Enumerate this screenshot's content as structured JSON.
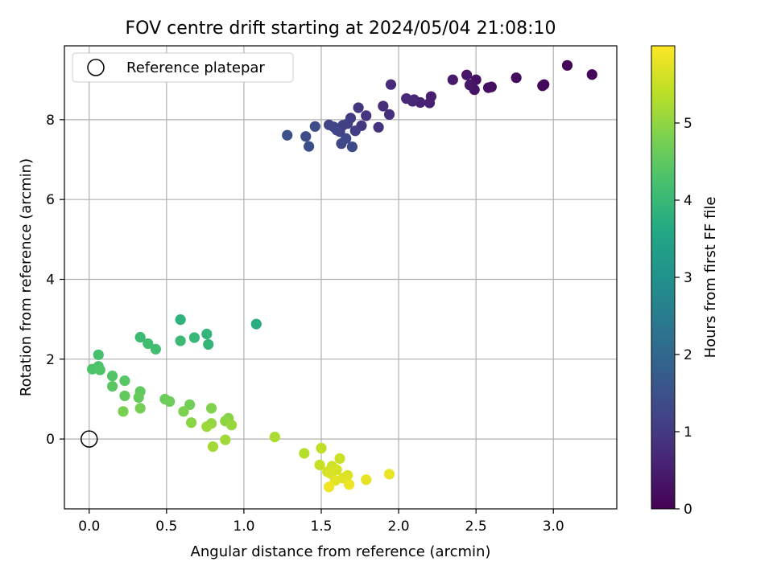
{
  "chart_data": {
    "type": "scatter",
    "title": "FOV centre drift starting at 2024/05/04 21:08:10",
    "xlabel": "Angular distance from reference (arcmin)",
    "ylabel": "Rotation from reference (arcmin)",
    "xlim": [
      -0.16,
      3.41
    ],
    "ylim": [
      -1.75,
      9.85
    ],
    "xticks": [
      0.0,
      0.5,
      1.0,
      1.5,
      2.0,
      2.5,
      3.0
    ],
    "yticks": [
      0,
      2,
      4,
      6,
      8
    ],
    "x_tick_labels": [
      "0.0",
      "0.5",
      "1.0",
      "1.5",
      "2.0",
      "2.5",
      "3.0"
    ],
    "y_tick_labels": [
      "0",
      "2",
      "4",
      "6",
      "8"
    ],
    "grid": true,
    "legend": {
      "position": "upper-left",
      "entries": [
        "Reference platepar"
      ]
    },
    "colorbar": {
      "label": "Hours from first FF file",
      "colormap": "viridis",
      "range": [
        0,
        6
      ],
      "ticks": [
        0,
        1,
        2,
        3,
        4,
        5
      ],
      "tick_labels": [
        "0",
        "1",
        "2",
        "3",
        "4",
        "5"
      ]
    },
    "reference": {
      "x": 0.0,
      "y": 0.0
    },
    "points": [
      {
        "x": 3.09,
        "y": 9.36,
        "h": 0.05
      },
      {
        "x": 3.25,
        "y": 9.13,
        "h": 0.08
      },
      {
        "x": 2.94,
        "y": 8.88,
        "h": 0.12
      },
      {
        "x": 2.93,
        "y": 8.85,
        "h": 0.14
      },
      {
        "x": 2.76,
        "y": 9.05,
        "h": 0.18
      },
      {
        "x": 2.6,
        "y": 8.82,
        "h": 0.22
      },
      {
        "x": 2.58,
        "y": 8.8,
        "h": 0.25
      },
      {
        "x": 2.5,
        "y": 9.0,
        "h": 0.28
      },
      {
        "x": 2.47,
        "y": 8.88,
        "h": 0.3
      },
      {
        "x": 2.49,
        "y": 8.75,
        "h": 0.33
      },
      {
        "x": 2.44,
        "y": 9.12,
        "h": 0.36
      },
      {
        "x": 2.46,
        "y": 8.87,
        "h": 0.4
      },
      {
        "x": 2.35,
        "y": 9.0,
        "h": 0.44
      },
      {
        "x": 2.21,
        "y": 8.58,
        "h": 0.5
      },
      {
        "x": 2.2,
        "y": 8.42,
        "h": 0.54
      },
      {
        "x": 2.14,
        "y": 8.43,
        "h": 0.58
      },
      {
        "x": 2.1,
        "y": 8.5,
        "h": 0.62
      },
      {
        "x": 2.05,
        "y": 8.53,
        "h": 0.66
      },
      {
        "x": 2.09,
        "y": 8.46,
        "h": 0.69
      },
      {
        "x": 1.95,
        "y": 8.88,
        "h": 0.72
      },
      {
        "x": 1.9,
        "y": 8.34,
        "h": 0.78
      },
      {
        "x": 1.94,
        "y": 8.13,
        "h": 0.82
      },
      {
        "x": 1.87,
        "y": 7.81,
        "h": 0.86
      },
      {
        "x": 1.79,
        "y": 8.1,
        "h": 0.9
      },
      {
        "x": 1.74,
        "y": 8.3,
        "h": 0.94
      },
      {
        "x": 1.76,
        "y": 7.85,
        "h": 0.98
      },
      {
        "x": 1.69,
        "y": 8.04,
        "h": 1.02
      },
      {
        "x": 1.72,
        "y": 7.72,
        "h": 1.06
      },
      {
        "x": 1.67,
        "y": 7.9,
        "h": 1.1
      },
      {
        "x": 1.64,
        "y": 7.86,
        "h": 1.13
      },
      {
        "x": 1.62,
        "y": 7.7,
        "h": 1.16
      },
      {
        "x": 1.58,
        "y": 7.82,
        "h": 1.19
      },
      {
        "x": 1.55,
        "y": 7.87,
        "h": 1.22
      },
      {
        "x": 1.6,
        "y": 7.74,
        "h": 1.25
      },
      {
        "x": 1.66,
        "y": 7.53,
        "h": 1.28
      },
      {
        "x": 1.63,
        "y": 7.4,
        "h": 1.31
      },
      {
        "x": 1.7,
        "y": 7.32,
        "h": 1.34
      },
      {
        "x": 1.46,
        "y": 7.83,
        "h": 1.37
      },
      {
        "x": 1.4,
        "y": 7.58,
        "h": 1.4
      },
      {
        "x": 1.42,
        "y": 7.33,
        "h": 1.43
      },
      {
        "x": 1.28,
        "y": 7.61,
        "h": 1.46
      },
      {
        "x": 1.08,
        "y": 2.88,
        "h": 3.75
      },
      {
        "x": 0.59,
        "y": 2.99,
        "h": 3.85
      },
      {
        "x": 0.76,
        "y": 2.63,
        "h": 3.9
      },
      {
        "x": 0.77,
        "y": 2.37,
        "h": 3.95
      },
      {
        "x": 0.68,
        "y": 2.54,
        "h": 4.0
      },
      {
        "x": 0.59,
        "y": 2.46,
        "h": 4.05
      },
      {
        "x": 0.33,
        "y": 2.55,
        "h": 4.1
      },
      {
        "x": 0.38,
        "y": 2.39,
        "h": 4.14
      },
      {
        "x": 0.43,
        "y": 2.25,
        "h": 4.18
      },
      {
        "x": 0.06,
        "y": 2.11,
        "h": 4.22
      },
      {
        "x": 0.06,
        "y": 1.82,
        "h": 4.26
      },
      {
        "x": 0.02,
        "y": 1.75,
        "h": 4.3
      },
      {
        "x": 0.07,
        "y": 1.73,
        "h": 4.34
      },
      {
        "x": 0.15,
        "y": 1.58,
        "h": 4.38
      },
      {
        "x": 0.23,
        "y": 1.46,
        "h": 4.42
      },
      {
        "x": 0.15,
        "y": 1.32,
        "h": 4.46
      },
      {
        "x": 0.33,
        "y": 1.19,
        "h": 4.5
      },
      {
        "x": 0.23,
        "y": 1.08,
        "h": 4.54
      },
      {
        "x": 0.32,
        "y": 1.04,
        "h": 4.58
      },
      {
        "x": 0.49,
        "y": 1.0,
        "h": 4.62
      },
      {
        "x": 0.52,
        "y": 0.94,
        "h": 4.66
      },
      {
        "x": 0.65,
        "y": 0.86,
        "h": 4.7
      },
      {
        "x": 0.33,
        "y": 0.77,
        "h": 4.74
      },
      {
        "x": 0.22,
        "y": 0.69,
        "h": 4.78
      },
      {
        "x": 0.61,
        "y": 0.69,
        "h": 4.82
      },
      {
        "x": 0.79,
        "y": 0.77,
        "h": 4.86
      },
      {
        "x": 0.9,
        "y": 0.52,
        "h": 4.9
      },
      {
        "x": 0.66,
        "y": 0.41,
        "h": 4.94
      },
      {
        "x": 0.88,
        "y": 0.45,
        "h": 4.98
      },
      {
        "x": 0.79,
        "y": 0.39,
        "h": 5.02
      },
      {
        "x": 0.92,
        "y": 0.35,
        "h": 5.06
      },
      {
        "x": 0.76,
        "y": 0.31,
        "h": 5.1
      },
      {
        "x": 0.88,
        "y": -0.02,
        "h": 5.14
      },
      {
        "x": 0.8,
        "y": -0.19,
        "h": 5.18
      },
      {
        "x": 1.2,
        "y": 0.05,
        "h": 5.25
      },
      {
        "x": 1.39,
        "y": -0.36,
        "h": 5.35
      },
      {
        "x": 1.5,
        "y": -0.23,
        "h": 5.42
      },
      {
        "x": 1.49,
        "y": -0.65,
        "h": 5.48
      },
      {
        "x": 1.62,
        "y": -0.49,
        "h": 5.52
      },
      {
        "x": 1.57,
        "y": -0.68,
        "h": 5.56
      },
      {
        "x": 1.54,
        "y": -0.82,
        "h": 5.6
      },
      {
        "x": 1.6,
        "y": -0.77,
        "h": 5.63
      },
      {
        "x": 1.56,
        "y": -0.86,
        "h": 5.66
      },
      {
        "x": 1.67,
        "y": -0.91,
        "h": 5.69
      },
      {
        "x": 1.64,
        "y": -0.98,
        "h": 5.72
      },
      {
        "x": 1.59,
        "y": -1.04,
        "h": 5.75
      },
      {
        "x": 1.79,
        "y": -1.02,
        "h": 5.78
      },
      {
        "x": 1.94,
        "y": -0.88,
        "h": 5.81
      },
      {
        "x": 1.68,
        "y": -1.14,
        "h": 5.84
      },
      {
        "x": 1.55,
        "y": -1.2,
        "h": 5.87
      }
    ]
  }
}
